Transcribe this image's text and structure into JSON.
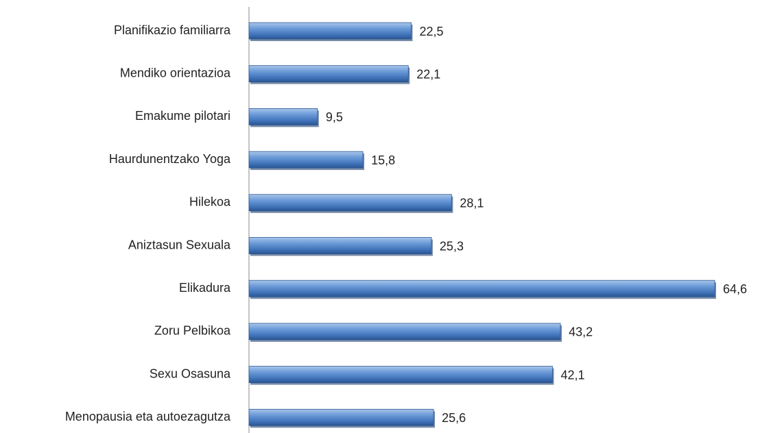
{
  "chart_data": {
    "type": "barh",
    "categories": [
      "Planifikazio familiarra",
      "Mendiko orientazioa",
      "Emakume pilotari",
      "Haurdunentzako Yoga",
      "Hilekoa",
      "Aniztasun Sexuala",
      "Elikadura",
      "Zoru Pelbikoa",
      "Sexu Osasuna",
      "Menopausia eta autoezagutza"
    ],
    "values": [
      22.5,
      22.1,
      9.5,
      15.8,
      28.1,
      25.3,
      64.6,
      43.2,
      42.1,
      25.6
    ],
    "value_labels": [
      "22,5",
      "22,1",
      "9,5",
      "15,8",
      "28,1",
      "25,3",
      "64,6",
      "43,2",
      "42,1",
      "25,6"
    ],
    "color": "#4f81bd"
  }
}
